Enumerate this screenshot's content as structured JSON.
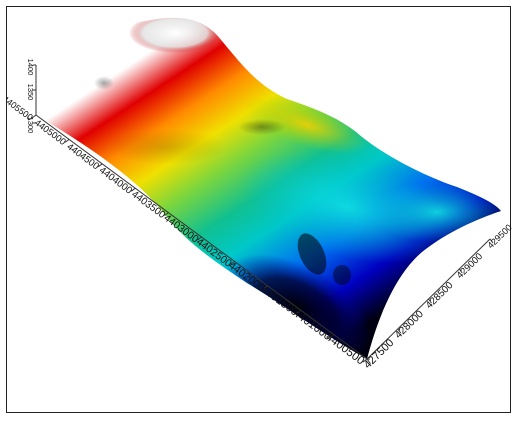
{
  "chart_data": {
    "type": "surface3d",
    "title": "",
    "xlabel": "",
    "ylabel": "",
    "zlabel": "",
    "x_ticks": [
      "427500",
      "428000",
      "428500",
      "429000",
      "429500"
    ],
    "y_ticks": [
      "4400500",
      "4401000",
      "4401500",
      "4402000",
      "4402500",
      "4403000",
      "4403500",
      "4404000",
      "4404500",
      "4405000",
      "4405500"
    ],
    "z_ticks": [
      "1300",
      "1350",
      "1400"
    ],
    "xlim": [
      427500,
      429500
    ],
    "ylim": [
      4400500,
      4405500
    ],
    "zlim": [
      1300,
      1400
    ],
    "colormap": [
      "#000000",
      "#0000cc",
      "#0078ff",
      "#00d2dc",
      "#10c090",
      "#7dd63c",
      "#f0e000",
      "#ff8c00",
      "#e00000",
      "#ffffff"
    ],
    "grid": false,
    "legend": "none"
  }
}
